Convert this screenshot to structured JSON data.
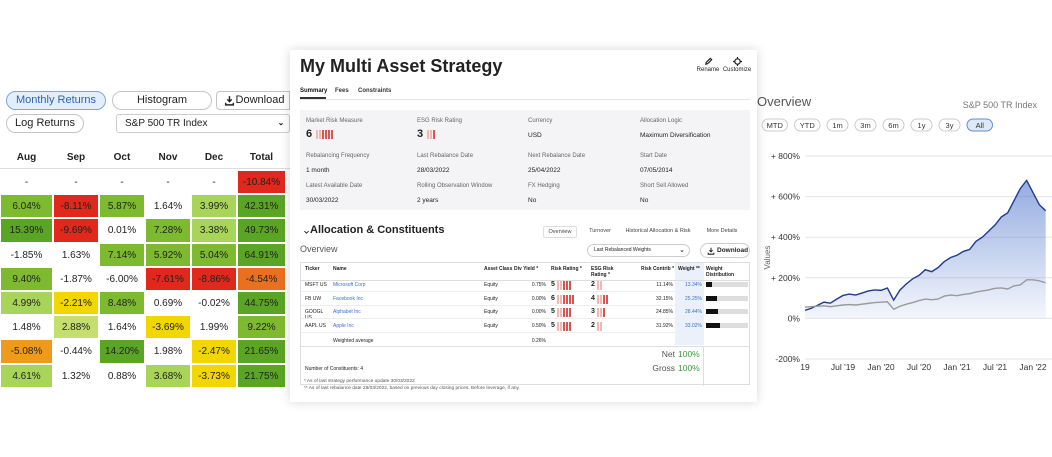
{
  "left": {
    "tabs": [
      "Monthly Returns",
      "Histogram"
    ],
    "download": "Download",
    "log_returns": "Log Returns",
    "benchmark": "S&P 500 TR Index",
    "table": {
      "columns": [
        "Aug",
        "Sep",
        "Oct",
        "Nov",
        "Dec",
        "Total"
      ],
      "rows": [
        [
          "-",
          "-",
          "-",
          "-",
          "-",
          "-10.84%"
        ],
        [
          "6.04%",
          "-8.11%",
          "5.87%",
          "1.64%",
          "3.99%",
          "42.31%"
        ],
        [
          "15.39%",
          "-9.69%",
          "0.01%",
          "7.28%",
          "3.38%",
          "49.73%"
        ],
        [
          "-1.85%",
          "1.63%",
          "7.14%",
          "5.92%",
          "5.04%",
          "64.91%"
        ],
        [
          "9.40%",
          "-1.87%",
          "-6.00%",
          "-7.61%",
          "-8.86%",
          "-4.54%"
        ],
        [
          "4.99%",
          "-2.21%",
          "8.48%",
          "0.69%",
          "-0.02%",
          "44.75%"
        ],
        [
          "1.48%",
          "2.88%",
          "1.64%",
          "-3.69%",
          "1.99%",
          "9.22%"
        ],
        [
          "-5.08%",
          "-0.44%",
          "14.20%",
          "1.98%",
          "-2.47%",
          "21.65%"
        ],
        [
          "4.61%",
          "1.32%",
          "0.88%",
          "3.68%",
          "-3.73%",
          "21.75%"
        ]
      ],
      "colors": [
        [
          "#ffffff",
          "#ffffff",
          "#ffffff",
          "#ffffff",
          "#ffffff",
          "#e0281c"
        ],
        [
          "#7dba2f",
          "#e0281c",
          "#7dba2f",
          "#ffffff",
          "#a9d45a",
          "#5aa524"
        ],
        [
          "#5aa524",
          "#e0281c",
          "#ffffff",
          "#7dba2f",
          "#a9d45a",
          "#5aa524"
        ],
        [
          "#ffffff",
          "#ffffff",
          "#7dba2f",
          "#7dba2f",
          "#7dba2f",
          "#5aa524"
        ],
        [
          "#7dba2f",
          "#ffffff",
          "#ffffff",
          "#e0281c",
          "#e0281c",
          "#e8701e"
        ],
        [
          "#a9d45a",
          "#f2d600",
          "#7dba2f",
          "#ffffff",
          "#ffffff",
          "#5aa524"
        ],
        [
          "#ffffff",
          "#c5df6e",
          "#ffffff",
          "#f2d600",
          "#ffffff",
          "#7dba2f"
        ],
        [
          "#ee9a1a",
          "#ffffff",
          "#5aa524",
          "#ffffff",
          "#f2d600",
          "#5aa524"
        ],
        [
          "#a9d45a",
          "#ffffff",
          "#ffffff",
          "#a9d45a",
          "#f2d600",
          "#5aa524"
        ]
      ]
    }
  },
  "strategy": {
    "title": "My Multi Asset Strategy",
    "actions": [
      "Rename",
      "Customize"
    ],
    "tabs": [
      "Summary",
      "Fees",
      "Constraints"
    ],
    "fields": [
      {
        "label": "Market Risk Measure",
        "value": 6
      },
      {
        "label": "ESG Risk Rating",
        "value": 3
      },
      {
        "label": "Currency",
        "value": "USD"
      },
      {
        "label": "Allocation Logic",
        "value": "Maximum Diversification"
      },
      {
        "label": "Rebalancing Frequency",
        "value": "1 month"
      },
      {
        "label": "Last Rebalance Date",
        "value": "28/03/2022"
      },
      {
        "label": "Next Rebalance Date",
        "value": "25/04/2022"
      },
      {
        "label": "Start Date",
        "value": "07/05/2014"
      },
      {
        "label": "Latest Available Date",
        "value": "30/03/2022"
      },
      {
        "label": "Rolling Observation Window",
        "value": "2 years"
      },
      {
        "label": "FX Hedging",
        "value": "No"
      },
      {
        "label": "Short Sell Allowed",
        "value": "No"
      }
    ],
    "allocation": {
      "title": "Allocation & Constituents",
      "tabs": [
        "Overview",
        "Turnover",
        "Historical Allocation & Risk",
        "More Details"
      ],
      "subtitle": "Overview",
      "select": "Last Rebalanced Weights",
      "download": "Download",
      "columns": [
        "Ticker",
        "Name",
        "Asset Class",
        "Div Yield *",
        "Risk Rating *",
        "ESG Risk Rating *",
        "Risk Contrib *",
        "Weight **",
        "Weight Distribution"
      ],
      "rows": [
        [
          "MSFT US",
          "Microsoft Corp",
          "Equity",
          "0.75%",
          5,
          2,
          "11.14%",
          {
            "value": 13.34,
            "label": "13.34%"
          }
        ],
        [
          "FB UW",
          "Facebook Inc",
          "Equity",
          "0.00%",
          6,
          4,
          "32.15%",
          {
            "value": 25.25,
            "label": "25.25%"
          }
        ],
        [
          "GOOGL US",
          "Alphabet Inc",
          "Equity",
          "0.00%",
          5,
          3,
          "24.85%",
          {
            "value": 28.44,
            "label": "28.44%"
          }
        ],
        [
          "AAPL US",
          "Apple Inc",
          "Equity",
          "0.50%",
          5,
          2,
          "31.92%",
          {
            "value": 33.02,
            "label": "33.02%"
          }
        ]
      ],
      "weighted": {
        "label": "Weighted average",
        "div_yield": "0.26%"
      },
      "constituents": "Number of Constituents: 4",
      "totals": [
        {
          "label": "Net",
          "value": "100%"
        },
        {
          "label": "Gross",
          "value": "100%"
        }
      ],
      "notes": [
        "* As of last strategy performance update 30/03/2022",
        "** As of last rebalance date 28/03/2022, based on previous day closing prices. Before leverage, if any."
      ]
    }
  },
  "chart_data": {
    "type": "line",
    "title": "Overview",
    "subtitle": "S&P 500 TR Index",
    "ranges": [
      "MTD",
      "YTD",
      "1m",
      "3m",
      "6m",
      "1y",
      "3y",
      "All"
    ],
    "active_range": "All",
    "y_label": "Values",
    "x": [
      "2019-01",
      "2019-02",
      "2019-03",
      "2019-04",
      "2019-05",
      "2019-06",
      "2019-07",
      "2019-08",
      "2019-09",
      "2019-10",
      "2019-11",
      "2019-12",
      "2020-01",
      "2020-02",
      "2020-03",
      "2020-04",
      "2020-05",
      "2020-06",
      "2020-07",
      "2020-08",
      "2020-09",
      "2020-10",
      "2020-11",
      "2020-12",
      "2021-01",
      "2021-02",
      "2021-03",
      "2021-04",
      "2021-05",
      "2021-06",
      "2021-07",
      "2021-08",
      "2021-09",
      "2021-10",
      "2021-11",
      "2021-12",
      "2022-01",
      "2022-02",
      "2022-03"
    ],
    "series": [
      {
        "color": "#1f3a93",
        "fill": true,
        "values": [
          40,
          50,
          65,
          80,
          75,
          95,
          113,
          120,
          115,
          125,
          135,
          140,
          138,
          150,
          90,
          140,
          170,
          195,
          212,
          240,
          230,
          250,
          280,
          300,
          311,
          330,
          340,
          380,
          400,
          430,
          460,
          500,
          520,
          580,
          640,
          680,
          620,
          560,
          530
        ]
      },
      {
        "color": "#9a9a9a",
        "fill": false,
        "values": [
          55,
          58,
          60,
          62,
          58,
          62,
          66,
          68,
          66,
          70,
          74,
          78,
          80,
          82,
          45,
          60,
          70,
          78,
          88,
          95,
          92,
          95,
          110,
          115,
          112,
          118,
          122,
          130,
          135,
          140,
          148,
          150,
          145,
          160,
          165,
          190,
          190,
          185,
          175
        ]
      }
    ],
    "xlim": [
      "2019-01",
      "2022-04"
    ],
    "ylim": [
      -200,
      800
    ],
    "xticks": [
      {
        "value": "2019-01",
        "label": "19"
      },
      {
        "value": "2019-07",
        "label": "Jul '19"
      },
      {
        "value": "2020-01",
        "label": "Jan '20"
      },
      {
        "value": "2020-07",
        "label": "Jul '20"
      },
      {
        "value": "2021-01",
        "label": "Jan '21"
      },
      {
        "value": "2021-07",
        "label": "Jul '21"
      },
      {
        "value": "2022-01",
        "label": "Jan '22"
      }
    ],
    "yticks": [
      {
        "value": -200,
        "label": "-200%"
      },
      {
        "value": 0,
        "label": "0%"
      },
      {
        "value": 200,
        "label": "+ 200%"
      },
      {
        "value": 400,
        "label": "+ 400%"
      },
      {
        "value": 600,
        "label": "+ 600%"
      },
      {
        "value": 800,
        "label": "+ 800%"
      }
    ],
    "grid": true
  }
}
